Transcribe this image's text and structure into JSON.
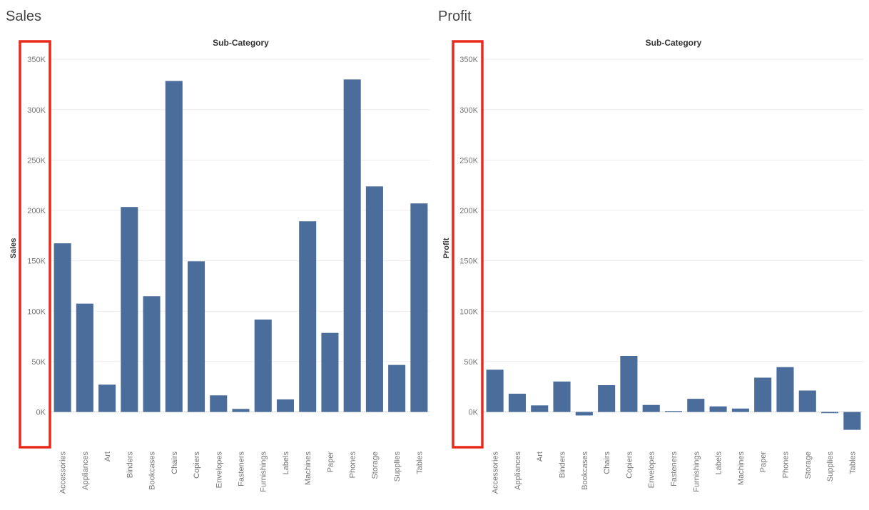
{
  "colors": {
    "bar": "#4a6d9c",
    "gridline": "#ececec",
    "zero_line": "#cfcfcf",
    "tick_text": "#767676",
    "axis_title": "#333333",
    "highlight_box": "#e8291c"
  },
  "chart_data": [
    {
      "type": "bar",
      "title": "Sales",
      "column_header": "Sub-Category",
      "ylabel": "Sales",
      "categories": [
        "Accessories",
        "Appliances",
        "Art",
        "Binders",
        "Bookcases",
        "Chairs",
        "Copiers",
        "Envelopes",
        "Fasteners",
        "Furnishings",
        "Labels",
        "Machines",
        "Paper",
        "Phones",
        "Storage",
        "Supplies",
        "Tables"
      ],
      "values": [
        167380,
        107532,
        27119,
        203413,
        114880,
        328449,
        149528,
        16476,
        3024,
        91705,
        12486,
        189239,
        78479,
        330007,
        223844,
        46674,
        206966
      ],
      "ylim": [
        -35000,
        360000
      ],
      "yticks": [
        0,
        50000,
        100000,
        150000,
        200000,
        250000,
        300000,
        350000
      ],
      "ytick_labels": [
        "0K",
        "50K",
        "100K",
        "150K",
        "200K",
        "250K",
        "300K",
        "350K"
      ],
      "grid": true,
      "highlight": "y-axis"
    },
    {
      "type": "bar",
      "title": "Profit",
      "column_header": "Sub-Category",
      "ylabel": "Profit",
      "categories": [
        "Accessories",
        "Appliances",
        "Art",
        "Binders",
        "Bookcases",
        "Chairs",
        "Copiers",
        "Envelopes",
        "Fasteners",
        "Furnishings",
        "Labels",
        "Machines",
        "Paper",
        "Phones",
        "Storage",
        "Supplies",
        "Tables"
      ],
      "values": [
        41937,
        18138,
        6528,
        30222,
        -3473,
        26590,
        55618,
        6964,
        950,
        13059,
        5546,
        3385,
        34054,
        44516,
        21279,
        -1189,
        -17725
      ],
      "ylim": [
        -35000,
        360000
      ],
      "yticks": [
        0,
        50000,
        100000,
        150000,
        200000,
        250000,
        300000,
        350000
      ],
      "ytick_labels": [
        "0K",
        "50K",
        "100K",
        "150K",
        "200K",
        "250K",
        "300K",
        "350K"
      ],
      "grid": true,
      "highlight": "y-axis"
    }
  ]
}
